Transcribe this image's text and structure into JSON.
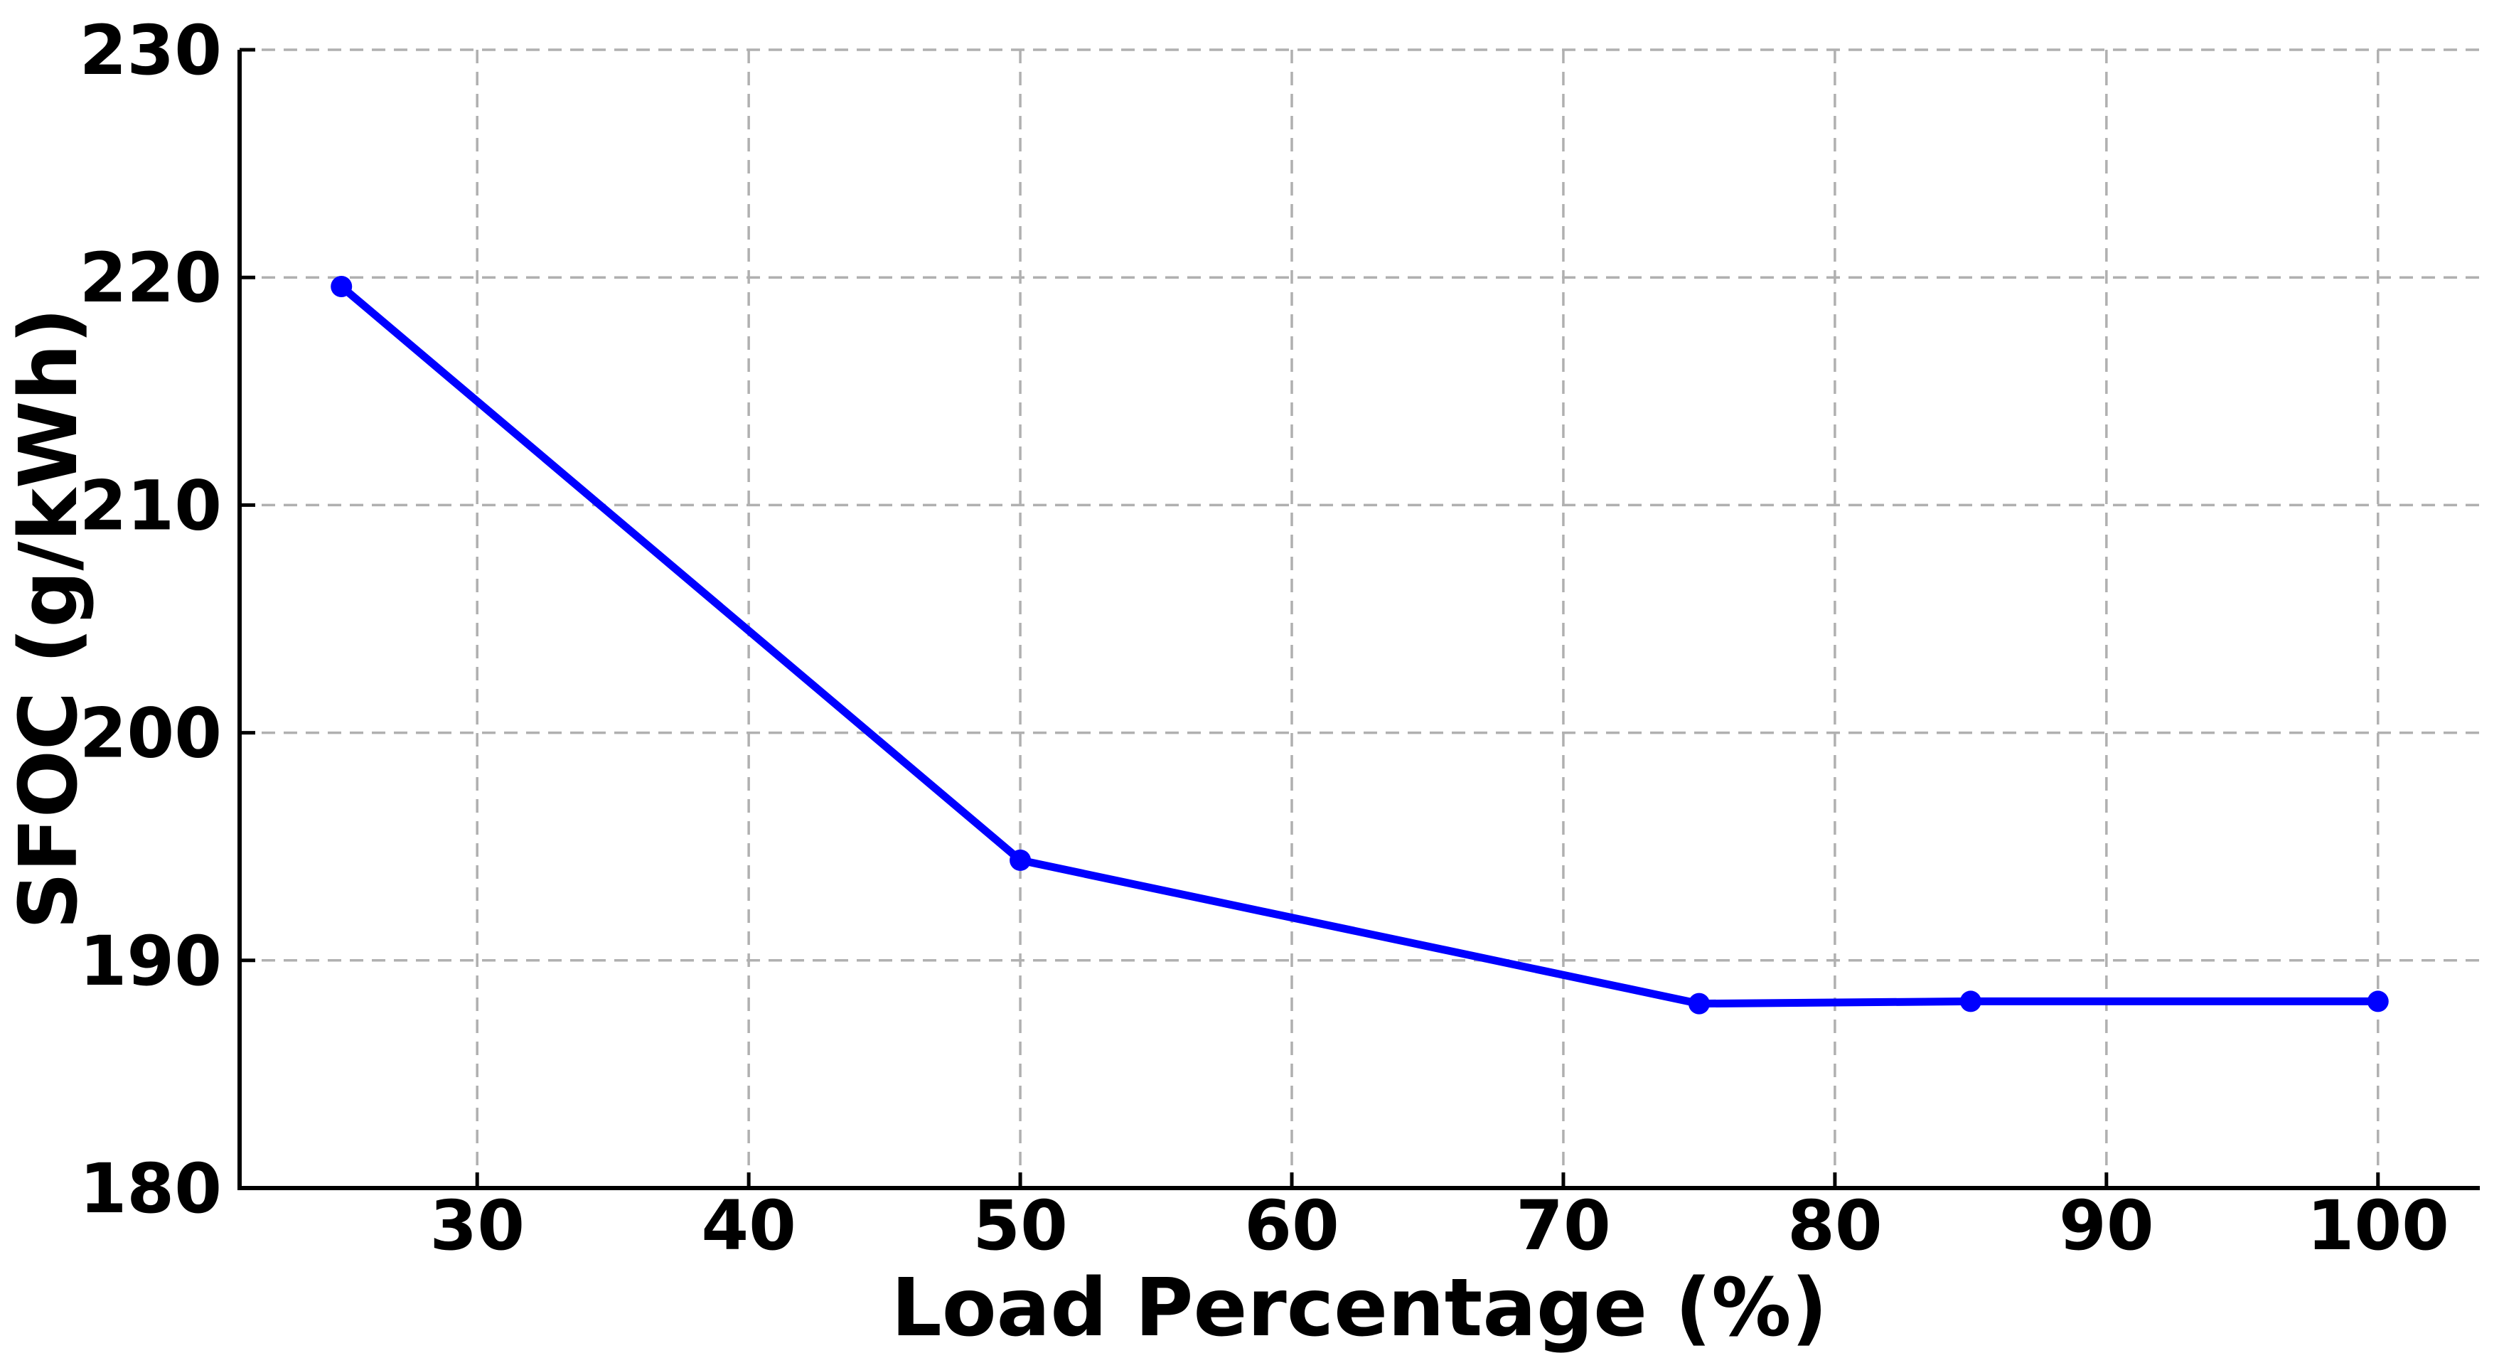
{
  "chart_data": {
    "type": "line",
    "title": "",
    "xlabel": "Load Percentage (%)",
    "ylabel": "SFOC (g/kWh)",
    "x": [
      25,
      50,
      75,
      85,
      100
    ],
    "y": [
      219.6,
      194.4,
      188.1,
      188.2,
      188.2
    ],
    "x_ticks": [
      "30",
      "40",
      "50",
      "60",
      "70",
      "80",
      "90",
      "100"
    ],
    "x_tick_values": [
      30,
      40,
      50,
      60,
      70,
      80,
      90,
      100
    ],
    "y_ticks": [
      "180",
      "190",
      "200",
      "210",
      "220",
      "230"
    ],
    "y_tick_values": [
      180,
      190,
      200,
      210,
      220,
      230
    ],
    "xlim": [
      21.25,
      103.75
    ],
    "ylim": [
      180,
      230
    ],
    "grid": true,
    "grid_style": "dashed",
    "legend_position": "none",
    "marker": "circle",
    "colors": {
      "line": "#0000ff",
      "marker": "#0000ff",
      "grid": "#b0b0b0",
      "axis": "#000000",
      "text": "#000000",
      "background": "#ffffff"
    }
  }
}
